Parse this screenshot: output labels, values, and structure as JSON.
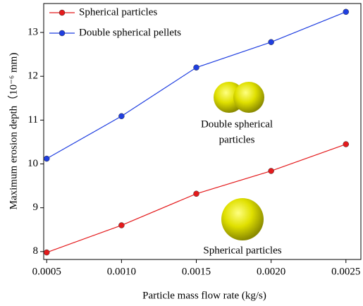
{
  "chart_data": {
    "type": "line",
    "x_label": "Particle mass flow rate (kg/s)",
    "y_label": "Maximum erosion depth（10⁻⁶ mm)",
    "x": [
      0.0005,
      0.001,
      0.0015,
      0.002,
      0.0025
    ],
    "series": [
      {
        "name": "Spherical particles",
        "color": "#e41a1c",
        "values": [
          7.98,
          8.6,
          9.32,
          9.84,
          10.45
        ]
      },
      {
        "name": "Double spherical pellets",
        "color": "#1f3ee0",
        "values": [
          10.12,
          11.09,
          12.2,
          12.78,
          13.47
        ]
      }
    ],
    "xlim": [
      0.00048,
      0.0026
    ],
    "ylim": [
      7.82,
      13.66
    ],
    "xticks": [
      0.0005,
      {
        "value": 0.001,
        "label": "0.0010"
      },
      0.0015,
      {
        "value": 0.002,
        "label": "0.0020"
      },
      0.0025
    ],
    "yticks": [
      8,
      9,
      10,
      11,
      12,
      13
    ],
    "legend": "upper left",
    "annotations": [
      "Double spherical",
      "particles",
      "Spherical particles"
    ]
  }
}
